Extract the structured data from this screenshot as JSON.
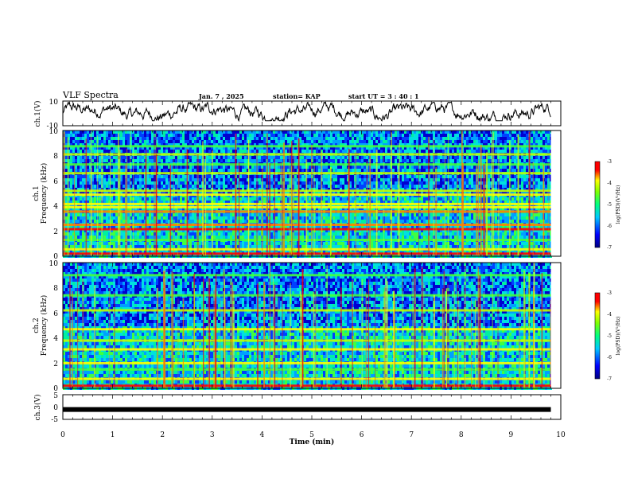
{
  "header": {
    "title": "VLF Spectra",
    "date": "Jan. 7 , 2025",
    "station": "station= KAP",
    "start": "start UT = 3 : 40 : 1"
  },
  "chart_data": [
    {
      "id": "ch1-waveform",
      "type": "line",
      "ylabel": "ch.1(V)",
      "ylim": [
        -10,
        10
      ],
      "yticks": [
        {
          "value": 10,
          "label": "10"
        },
        {
          "value": -10,
          "label": "-10"
        }
      ],
      "xlim": [
        0,
        9.8
      ],
      "description_only": false,
      "series": [
        {
          "name": "ch.1",
          "color": "#000000",
          "amplitude_range": [
            -6,
            9
          ]
        }
      ]
    },
    {
      "id": "ch1-spectrogram",
      "type": "heatmap",
      "ylabel": "ch.1",
      "ylabel2": "Frequency (kHz)",
      "ylim": [
        0,
        10
      ],
      "yticks": [
        {
          "value": 0,
          "label": "0"
        },
        {
          "value": 2,
          "label": "2"
        },
        {
          "value": 4,
          "label": "4"
        },
        {
          "value": 6,
          "label": "6"
        },
        {
          "value": 8,
          "label": "8"
        },
        {
          "value": 10,
          "label": "10"
        }
      ],
      "xlim": [
        0,
        9.8
      ],
      "bands_khz": [
        {
          "f": 0.2,
          "level": 0.95
        },
        {
          "f": 0.55,
          "level": 0.75
        },
        {
          "f": 1.3,
          "level": 0.55
        },
        {
          "f": 2.15,
          "level": 0.95
        },
        {
          "f": 2.5,
          "level": 0.8
        },
        {
          "f": 3.55,
          "level": 0.85
        },
        {
          "f": 3.9,
          "level": 0.75
        },
        {
          "f": 4.15,
          "level": 0.7
        },
        {
          "f": 4.9,
          "level": 0.75
        },
        {
          "f": 5.2,
          "level": 0.6
        },
        {
          "f": 6.6,
          "level": 0.6
        },
        {
          "f": 7.3,
          "level": 0.55
        },
        {
          "f": 8.1,
          "level": 0.6
        },
        {
          "f": 8.75,
          "level": 0.55
        }
      ],
      "colorbar": {
        "label": "log(PSD)(V²/Hz)",
        "range": [
          -7,
          -3
        ],
        "ticks": [
          {
            "value": -3,
            "label": "-3"
          },
          {
            "value": -4,
            "label": "-4"
          },
          {
            "value": -5,
            "label": "-5"
          },
          {
            "value": -6,
            "label": "-6"
          },
          {
            "value": -7,
            "label": "-7"
          }
        ]
      }
    },
    {
      "id": "ch2-spectrogram",
      "type": "heatmap",
      "ylabel": "ch.2",
      "ylabel2": "Frequency (kHz)",
      "ylim": [
        0,
        10
      ],
      "yticks": [
        {
          "value": 0,
          "label": "0"
        },
        {
          "value": 2,
          "label": "2"
        },
        {
          "value": 4,
          "label": "4"
        },
        {
          "value": 6,
          "label": "6"
        },
        {
          "value": 8,
          "label": "8"
        },
        {
          "value": 10,
          "label": "10"
        }
      ],
      "xlim": [
        0,
        9.8
      ],
      "bands_khz": [
        {
          "f": 0.2,
          "level": 0.95
        },
        {
          "f": 0.75,
          "level": 0.7
        },
        {
          "f": 1.5,
          "level": 0.55
        },
        {
          "f": 2.0,
          "level": 0.7
        },
        {
          "f": 3.1,
          "level": 0.7
        },
        {
          "f": 3.8,
          "level": 0.6
        },
        {
          "f": 4.7,
          "level": 0.7
        },
        {
          "f": 6.2,
          "level": 0.6
        },
        {
          "f": 7.4,
          "level": 0.55
        },
        {
          "f": 9.0,
          "level": 0.55
        }
      ],
      "colorbar": {
        "label": "log(PSD)(V²/Hz)",
        "range": [
          -7,
          -3
        ],
        "ticks": [
          {
            "value": -3,
            "label": "-3"
          },
          {
            "value": -4,
            "label": "-4"
          },
          {
            "value": -5,
            "label": "-5"
          },
          {
            "value": -6,
            "label": "-6"
          },
          {
            "value": -7,
            "label": "-7"
          }
        ]
      }
    },
    {
      "id": "ch3-trace",
      "type": "line",
      "ylabel": "ch.3(V)",
      "ylim": [
        -5,
        5
      ],
      "yticks": [
        {
          "value": 5,
          "label": "5"
        },
        {
          "value": 0,
          "label": "0"
        },
        {
          "value": -5,
          "label": "-5"
        }
      ],
      "xlim": [
        0,
        9.8
      ],
      "series": [
        {
          "name": "ch.3",
          "color": "#000000",
          "constant_value": -1
        }
      ]
    }
  ],
  "xaxis": {
    "label": "Time (min)",
    "range": [
      0,
      10
    ],
    "ticks": [
      {
        "value": 0,
        "label": "0"
      },
      {
        "value": 1,
        "label": "1"
      },
      {
        "value": 2,
        "label": "2"
      },
      {
        "value": 3,
        "label": "3"
      },
      {
        "value": 4,
        "label": "4"
      },
      {
        "value": 5,
        "label": "5"
      },
      {
        "value": 6,
        "label": "6"
      },
      {
        "value": 7,
        "label": "7"
      },
      {
        "value": 8,
        "label": "8"
      },
      {
        "value": 9,
        "label": "9"
      },
      {
        "value": 10,
        "label": "10"
      }
    ]
  },
  "colors": {
    "frame": "#000000",
    "colormap": [
      "#0000ff",
      "#00c8ff",
      "#00ff80",
      "#ffff00",
      "#ff0000"
    ]
  }
}
